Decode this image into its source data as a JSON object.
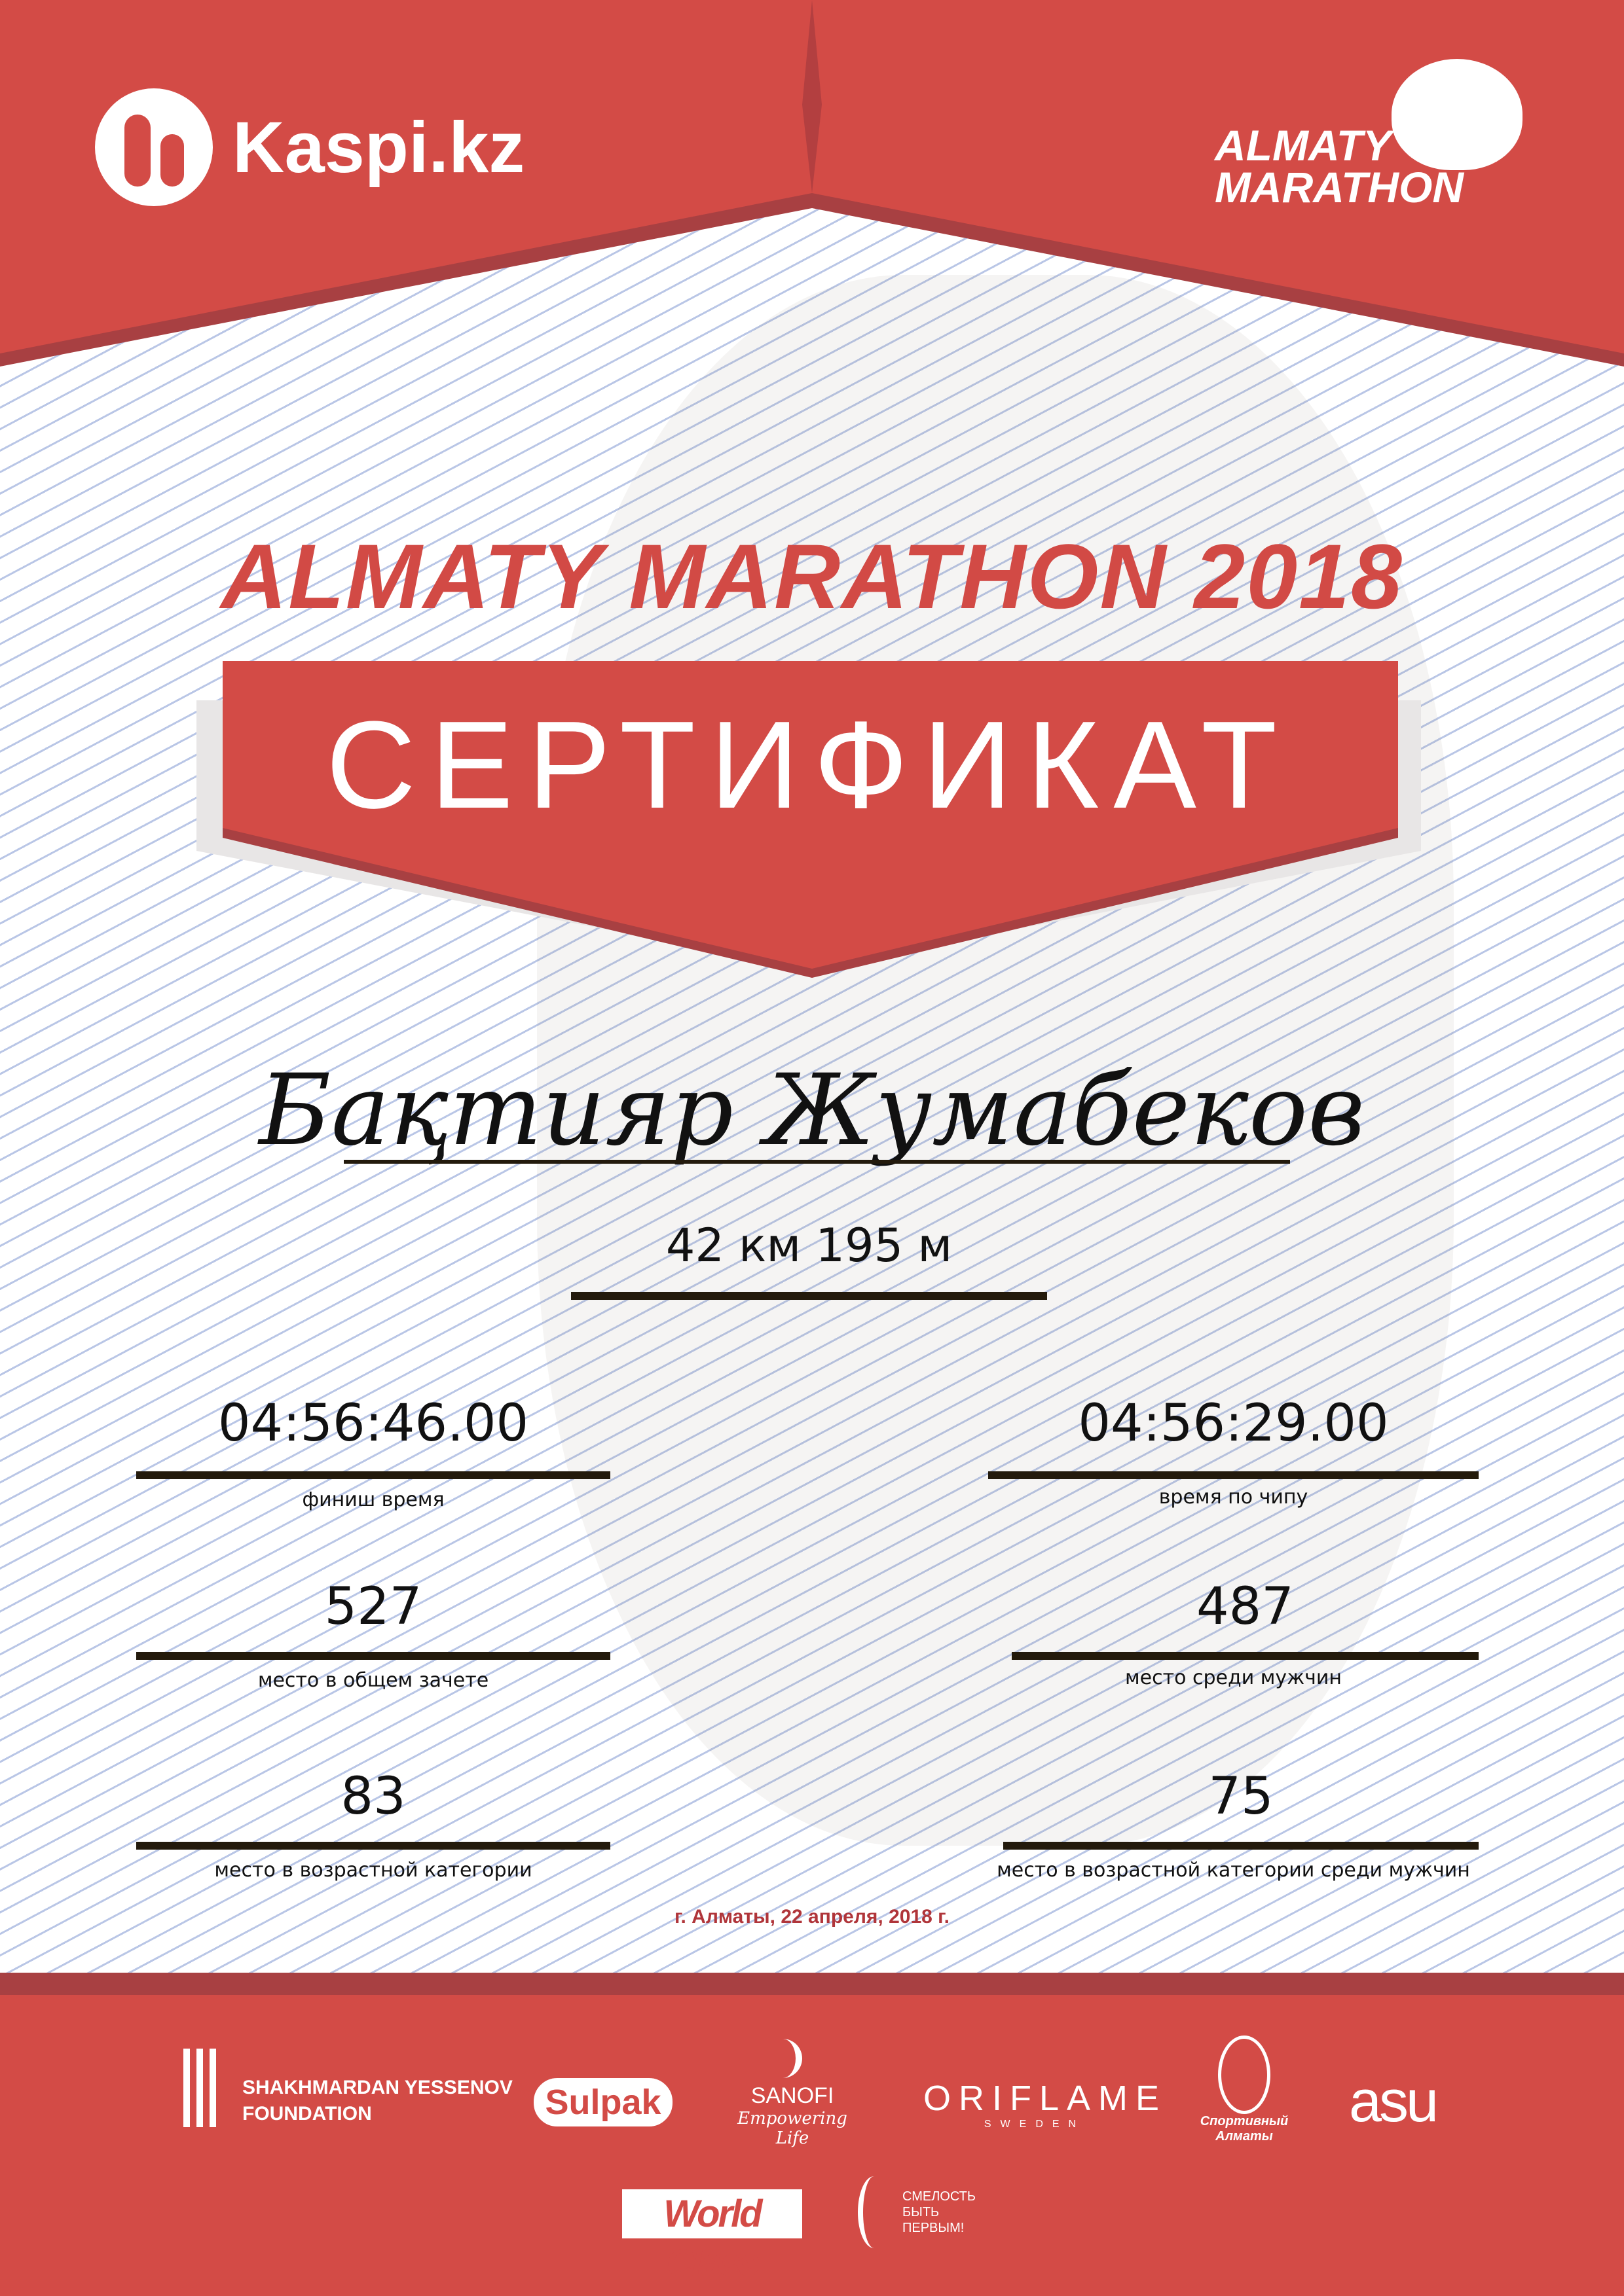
{
  "header": {
    "sponsor_logo": "Kaspi.kz",
    "event_logo_line1": "ALMATY",
    "event_logo_line2": "MARATHON",
    "brand_color": "#d24a45"
  },
  "title": "ALMATY MARATHON 2018",
  "banner": "СЕРТИФИКАТ",
  "participant": {
    "name": "Бақтияр Жумабеков",
    "distance": "42 км 195 м"
  },
  "stats": [
    {
      "value": "04:56:46.00",
      "label": "финиш время"
    },
    {
      "value": "04:56:29.00",
      "label": "время по чипу"
    },
    {
      "value": "527",
      "label": "место в общем зачете"
    },
    {
      "value": "487",
      "label": "место среди мужчин"
    },
    {
      "value": "83",
      "label": "место в возрастной категории"
    },
    {
      "value": "75",
      "label": "место в возрастной категории среди мужчин"
    }
  ],
  "date": "г. Алматы, 22 апреля, 2018 г.",
  "partners": {
    "yessenov": [
      "SHAKHMARDAN YESSENOV",
      "FOUNDATION"
    ],
    "sulpak": "Sulpak",
    "sanofi": [
      "SANOFI",
      "Empowering Life"
    ],
    "oriflame": [
      "ORIFLAME",
      "SWEDEN"
    ],
    "sport_almaty": "Спортивный Алматы",
    "asu": "asu",
    "worldclass": "World Class",
    "smelost": [
      "СМЕЛОСТЬ",
      "БЫТЬ",
      "ПЕРВЫМ!"
    ]
  }
}
